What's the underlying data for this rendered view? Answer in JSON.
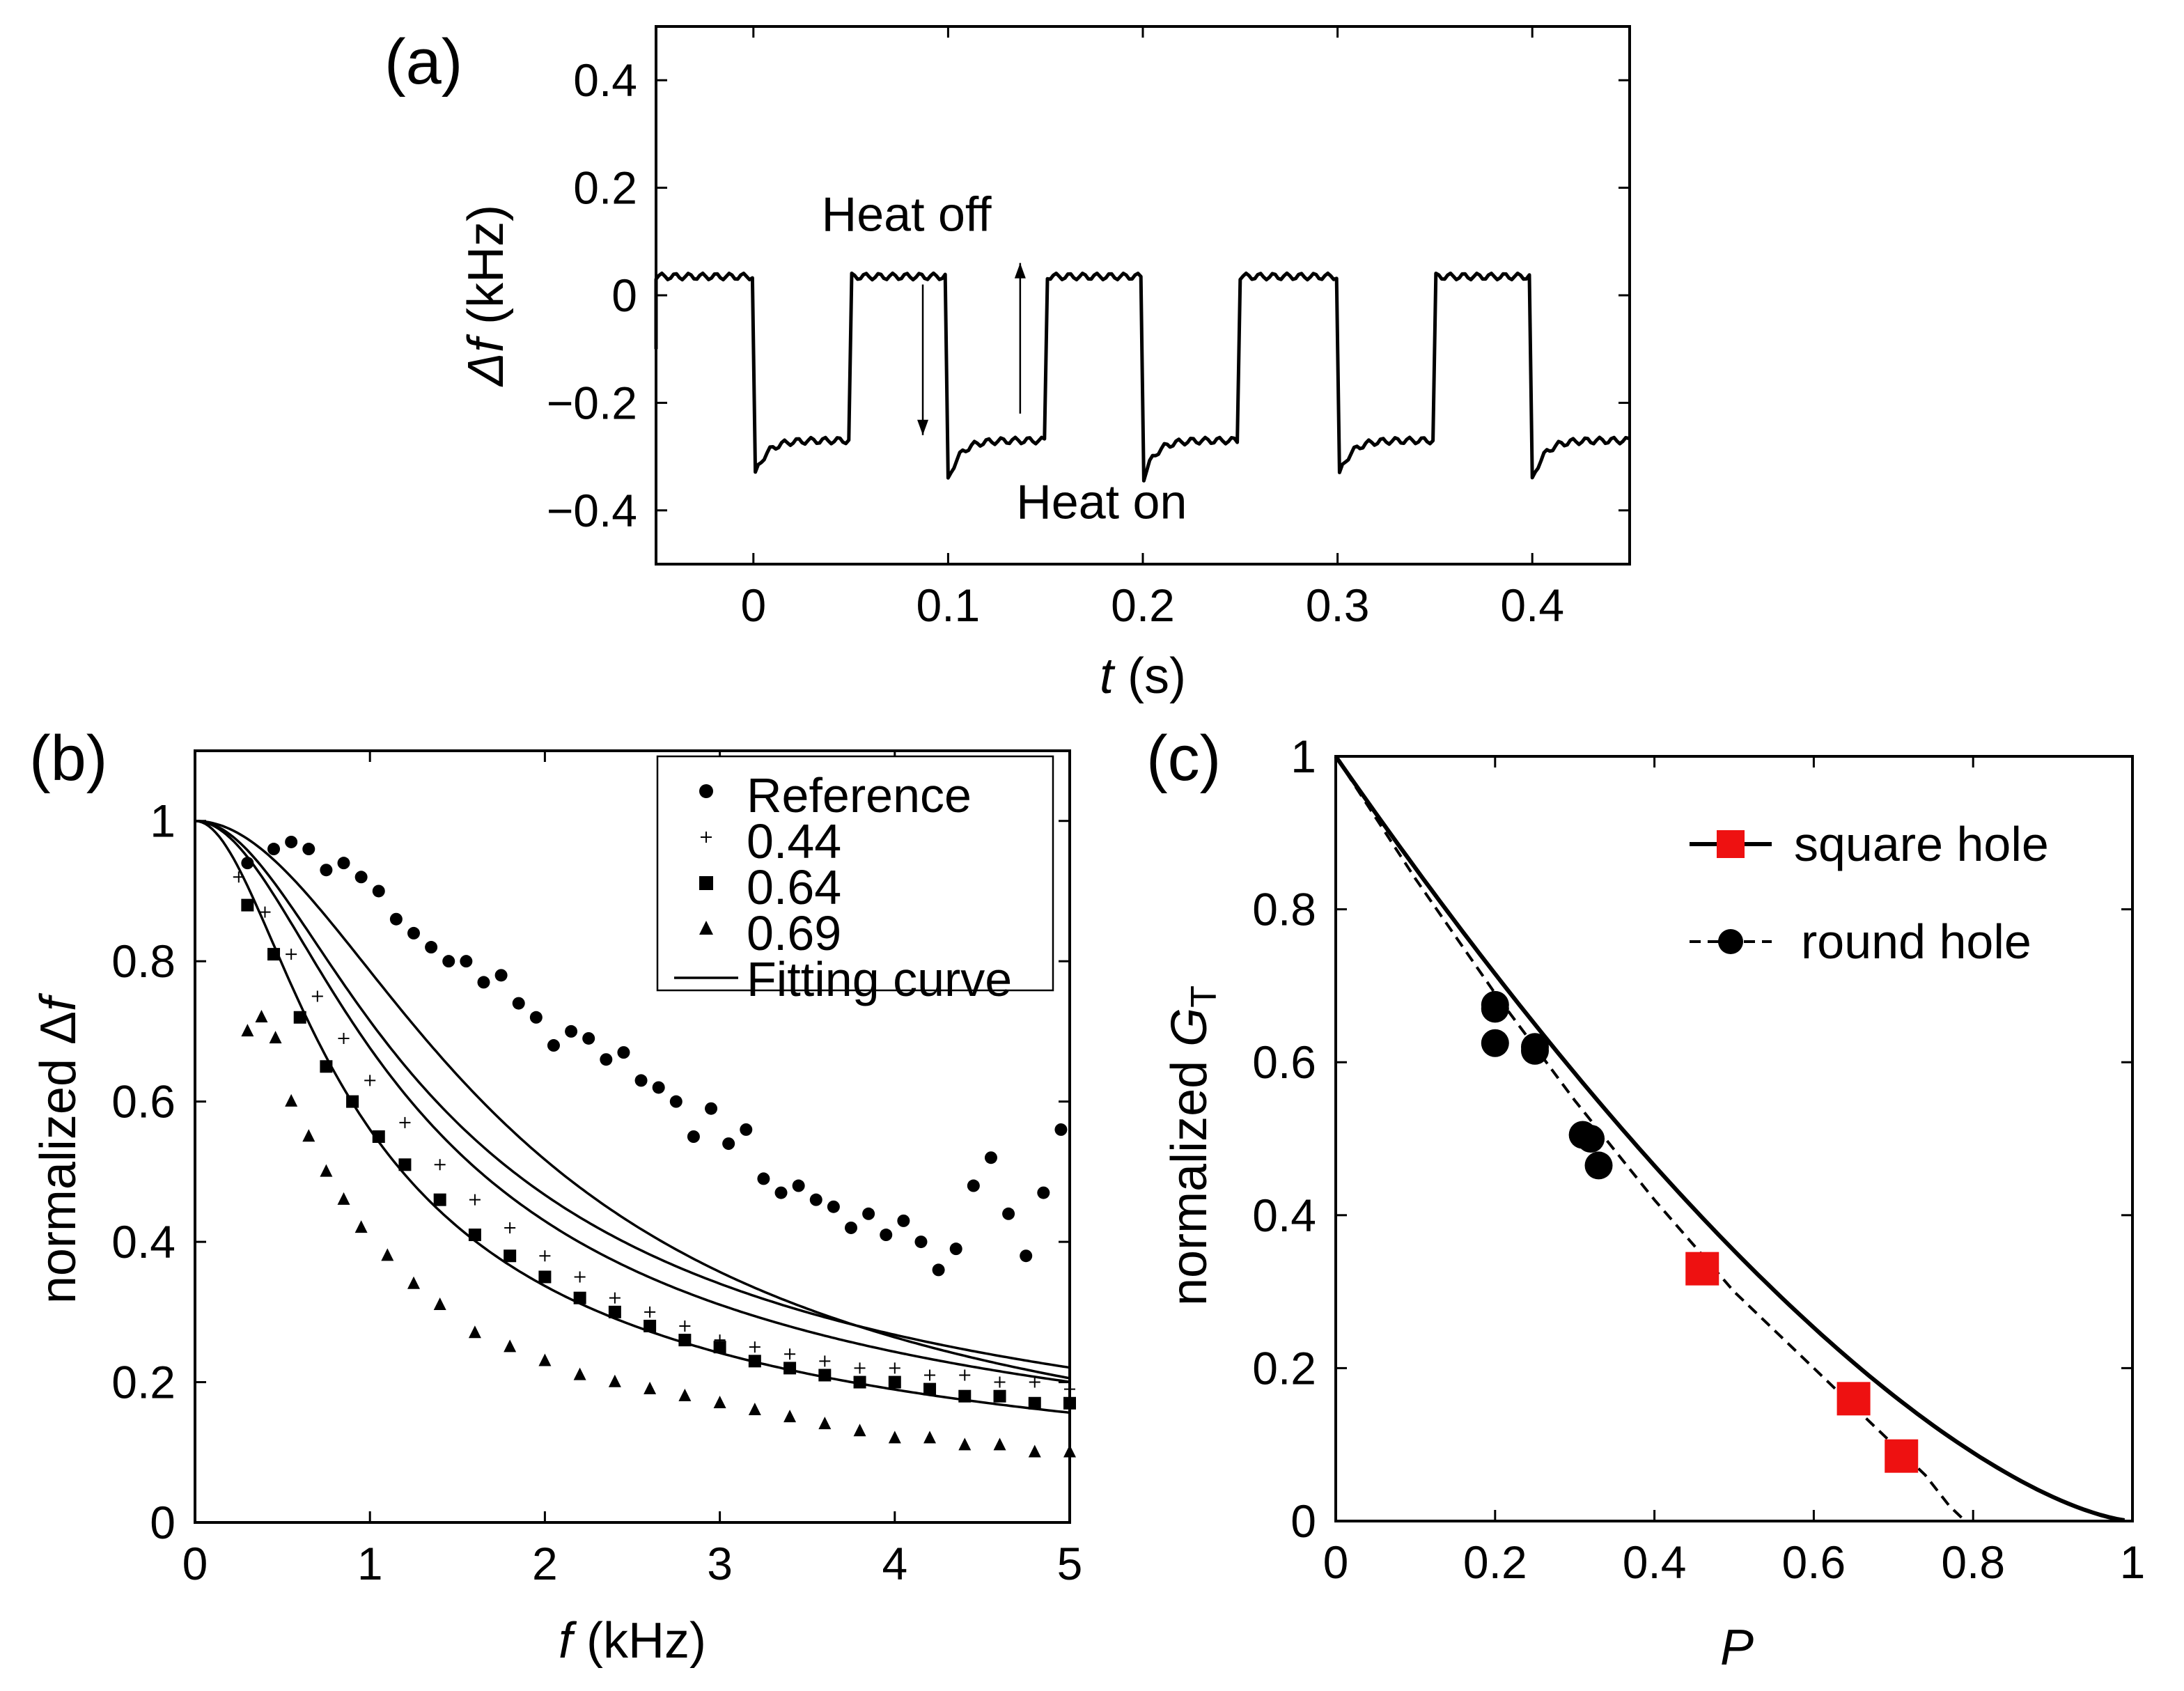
{
  "chart_data": [
    {
      "panel": "(a)",
      "type": "line",
      "xlabel_var": "t",
      "xlabel_unit": " (s)",
      "ylabel_var": "Δf",
      "ylabel_unit": " (kHz)",
      "xlim": [
        -0.05,
        0.45
      ],
      "ylim": [
        -0.5,
        0.5
      ],
      "xticks": [
        0,
        0.1,
        0.2,
        0.3,
        0.4
      ],
      "xtick_labels": [
        "0",
        "0.1",
        "0.2",
        "0.3",
        "0.4"
      ],
      "yticks": [
        -0.4,
        -0.2,
        0,
        0.2,
        0.4
      ],
      "ytick_labels": [
        "−0.4",
        "−0.2",
        "0",
        "0.2",
        "0.4"
      ],
      "series": [
        {
          "style": "square-wave",
          "period": 0.1,
          "heat_off_level": 0.035,
          "heat_on_level": -0.27,
          "undershoot_min": -0.345,
          "transitions_t": [
            0,
            0.05,
            0.1,
            0.15,
            0.2,
            0.25,
            0.3,
            0.35,
            0.4
          ]
        }
      ],
      "annotations": [
        {
          "text": "Heat off",
          "x": 0.035,
          "y": 0.12
        },
        {
          "text": "Heat on",
          "x": 0.135,
          "y": -0.415
        }
      ],
      "arrows": [
        {
          "direction": "down",
          "x": 0.087,
          "y_from": 0.02,
          "y_to": -0.26
        },
        {
          "direction": "up",
          "x": 0.137,
          "y_from": -0.22,
          "y_to": 0.06
        }
      ]
    },
    {
      "panel": "(b)",
      "type": "scatter",
      "xlabel_var": "f",
      "xlabel_unit": " (kHz)",
      "ylabel_text": "normalized Δ",
      "ylabel_var": "f",
      "xlim": [
        0,
        5
      ],
      "ylim": [
        0,
        1.1
      ],
      "xticks": [
        0,
        1,
        2,
        3,
        4,
        5
      ],
      "xtick_labels": [
        "0",
        "1",
        "2",
        "3",
        "4",
        "5"
      ],
      "yticks": [
        0,
        0.2,
        0.4,
        0.6,
        0.8,
        1
      ],
      "ytick_labels": [
        "0",
        "0.2",
        "0.4",
        "0.6",
        "0.8",
        "1"
      ],
      "legend_position": "top-right",
      "legend": [
        "Reference",
        "0.44",
        "0.64",
        "0.69",
        "Fitting curve"
      ],
      "series": [
        {
          "name": "Reference",
          "marker": "circle",
          "x": [
            0.3,
            0.45,
            0.55,
            0.65,
            0.75,
            0.85,
            0.95,
            1.05,
            1.15,
            1.25,
            1.35,
            1.45,
            1.55,
            1.65,
            1.75,
            1.85,
            1.95,
            2.05,
            2.15,
            2.25,
            2.35,
            2.45,
            2.55,
            2.65,
            2.75,
            2.85,
            2.95,
            3.05,
            3.15,
            3.25,
            3.35,
            3.45,
            3.55,
            3.65,
            3.75,
            3.85,
            3.95,
            4.05,
            4.15,
            4.25,
            4.35,
            4.45,
            4.55,
            4.65,
            4.75,
            4.85,
            4.95
          ],
          "y": [
            0.94,
            0.96,
            0.97,
            0.96,
            0.93,
            0.94,
            0.92,
            0.9,
            0.86,
            0.84,
            0.82,
            0.8,
            0.8,
            0.77,
            0.78,
            0.74,
            0.72,
            0.68,
            0.7,
            0.69,
            0.66,
            0.67,
            0.63,
            0.62,
            0.6,
            0.55,
            0.59,
            0.54,
            0.56,
            0.49,
            0.47,
            0.48,
            0.46,
            0.45,
            0.42,
            0.44,
            0.41,
            0.43,
            0.4,
            0.36,
            0.39,
            0.48,
            0.52,
            0.44,
            0.38,
            0.47,
            0.56
          ],
          "fit_scale": 1.45,
          "fit_exponent": 2.2
        },
        {
          "name": "0.44",
          "marker": "plus",
          "x": [
            0.25,
            0.4,
            0.55,
            0.7,
            0.85,
            1.0,
            1.2,
            1.4,
            1.6,
            1.8,
            2.0,
            2.2,
            2.4,
            2.6,
            2.8,
            3.0,
            3.2,
            3.4,
            3.6,
            3.8,
            4.0,
            4.2,
            4.4,
            4.6,
            4.8,
            5.0
          ],
          "y": [
            0.92,
            0.87,
            0.81,
            0.75,
            0.69,
            0.63,
            0.57,
            0.51,
            0.46,
            0.42,
            0.38,
            0.35,
            0.32,
            0.3,
            0.28,
            0.26,
            0.25,
            0.24,
            0.23,
            0.22,
            0.22,
            0.21,
            0.21,
            0.2,
            0.2,
            0.19
          ],
          "fit_scale": 0.95,
          "fit_exponent": 1.6
        },
        {
          "name": "0.64",
          "marker": "square",
          "x": [
            0.3,
            0.45,
            0.6,
            0.75,
            0.9,
            1.05,
            1.2,
            1.4,
            1.6,
            1.8,
            2.0,
            2.2,
            2.4,
            2.6,
            2.8,
            3.0,
            3.2,
            3.4,
            3.6,
            3.8,
            4.0,
            4.2,
            4.4,
            4.6,
            4.8,
            5.0
          ],
          "y": [
            0.88,
            0.81,
            0.72,
            0.65,
            0.6,
            0.55,
            0.51,
            0.46,
            0.41,
            0.38,
            0.35,
            0.32,
            0.3,
            0.28,
            0.26,
            0.25,
            0.23,
            0.22,
            0.21,
            0.2,
            0.2,
            0.19,
            0.18,
            0.18,
            0.17,
            0.17
          ],
          "fit_scale": 0.85,
          "fit_exponent": 1.6
        },
        {
          "name": "0.69",
          "marker": "triangle",
          "x": [
            0.3,
            0.38,
            0.46,
            0.55,
            0.65,
            0.75,
            0.85,
            0.95,
            1.1,
            1.25,
            1.4,
            1.6,
            1.8,
            2.0,
            2.2,
            2.4,
            2.6,
            2.8,
            3.0,
            3.2,
            3.4,
            3.6,
            3.8,
            4.0,
            4.2,
            4.4,
            4.6,
            4.8,
            5.0
          ],
          "y": [
            0.7,
            0.72,
            0.69,
            0.6,
            0.55,
            0.5,
            0.46,
            0.42,
            0.38,
            0.34,
            0.31,
            0.27,
            0.25,
            0.23,
            0.21,
            0.2,
            0.19,
            0.18,
            0.17,
            0.16,
            0.15,
            0.14,
            0.13,
            0.12,
            0.12,
            0.11,
            0.11,
            0.1,
            0.1
          ],
          "fit_scale": 0.6,
          "fit_exponent": 1.55
        }
      ]
    },
    {
      "panel": "(c)",
      "type": "line",
      "xlabel_var": "P",
      "ylabel_text": "normalized ",
      "ylabel_var": "G",
      "ylabel_sub": "T",
      "xlim": [
        0,
        1
      ],
      "ylim": [
        0,
        1
      ],
      "xticks": [
        0,
        0.2,
        0.4,
        0.6,
        0.8,
        1
      ],
      "xtick_labels": [
        "0",
        "0.2",
        "0.4",
        "0.6",
        "0.8",
        "1"
      ],
      "yticks": [
        0,
        0.2,
        0.4,
        0.6,
        0.8,
        1
      ],
      "ytick_labels": [
        "0",
        "0.2",
        "0.4",
        "0.6",
        "0.8",
        "1"
      ],
      "legend_position": "top-right",
      "legend": [
        "square hole",
        "round hole"
      ],
      "square_hole_color": "#ee1111",
      "series": [
        {
          "name": "square hole",
          "line": "solid",
          "marker": "square",
          "points_x": [
            0.46,
            0.65,
            0.71
          ],
          "points_y": [
            0.33,
            0.16,
            0.085
          ],
          "curve_exponent": 1.5
        },
        {
          "name": "round hole",
          "line": "dashed",
          "marker": "circle",
          "points_x": [
            0.2,
            0.2,
            0.2,
            0.25,
            0.25,
            0.31,
            0.32,
            0.33
          ],
          "points_y": [
            0.675,
            0.67,
            0.625,
            0.62,
            0.615,
            0.505,
            0.5,
            0.465
          ],
          "curve_x": [
            0,
            0.1,
            0.2,
            0.3,
            0.4,
            0.5,
            0.6,
            0.65,
            0.7,
            0.74,
            0.77,
            0.79
          ],
          "curve_y": [
            1,
            0.84,
            0.69,
            0.55,
            0.42,
            0.3,
            0.2,
            0.15,
            0.1,
            0.06,
            0.02,
            0
          ]
        }
      ]
    }
  ]
}
